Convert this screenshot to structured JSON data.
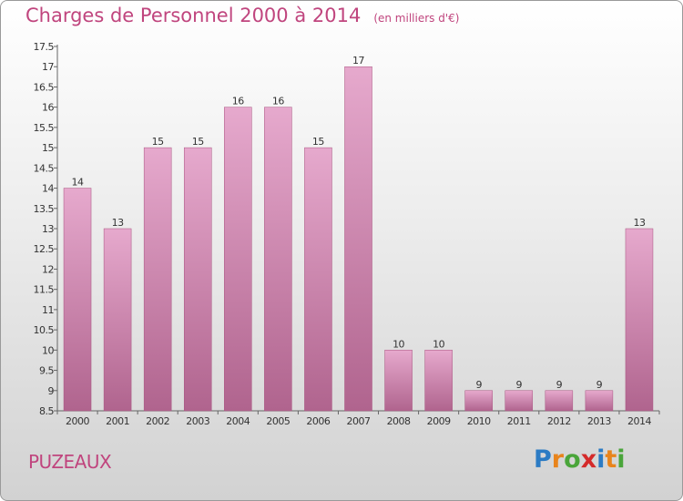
{
  "title": "Charges de Personnel 2000 à 2014",
  "unit_note": "(en milliers d'€)",
  "city": "PUZEAUX",
  "logo": {
    "text": "Proxiti",
    "letters": [
      "P",
      "r",
      "o",
      "x",
      "i",
      "t",
      "i"
    ],
    "letter_colors": [
      "#2b7bc4",
      "#e8841c",
      "#4aa53a",
      "#d42a2a",
      "#2b7bc4",
      "#e8841c",
      "#4aa53a"
    ]
  },
  "colors": {
    "title": "#c0457e",
    "bar_top": "#e6a9cd",
    "bar_bottom": "#b0648e",
    "axis": "#666666"
  },
  "chart_data": {
    "type": "bar",
    "categories": [
      "2000",
      "2001",
      "2002",
      "2003",
      "2004",
      "2005",
      "2006",
      "2007",
      "2008",
      "2009",
      "2010",
      "2011",
      "2012",
      "2013",
      "2014"
    ],
    "values": [
      14,
      13,
      15,
      15,
      16,
      16,
      15,
      17,
      10,
      10,
      9,
      9,
      9,
      9,
      13
    ],
    "data_labels": [
      "14",
      "13",
      "15",
      "15",
      "16",
      "16",
      "15",
      "17",
      "10",
      "10",
      "9",
      "9",
      "9",
      "9",
      "13"
    ],
    "y_ticks": [
      "8.5",
      "9",
      "9.5",
      "10",
      "10.5",
      "11",
      "11.5",
      "12",
      "12.5",
      "13",
      "13.5",
      "14",
      "14.5",
      "15",
      "15.5",
      "16",
      "16.5",
      "17",
      "17.5"
    ],
    "ylim": [
      8.5,
      17.5
    ],
    "grid": false,
    "legend": "none"
  }
}
